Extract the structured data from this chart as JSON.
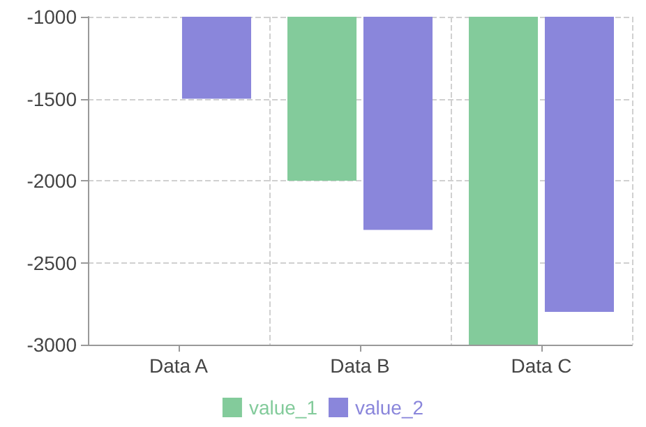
{
  "chart_data": {
    "type": "bar",
    "categories": [
      "Data A",
      "Data B",
      "Data C"
    ],
    "series": [
      {
        "name": "value_1",
        "color": "#83cb9b",
        "values": [
          -1000,
          -2000,
          -3000
        ]
      },
      {
        "name": "value_2",
        "color": "#8a86db",
        "values": [
          -1500,
          -2300,
          -2800
        ]
      }
    ],
    "ylim": [
      -3000,
      -1000
    ],
    "yticks": [
      -3000,
      -2500,
      -2000,
      -1500,
      -1000
    ],
    "grid": true,
    "legend": "bottom"
  }
}
